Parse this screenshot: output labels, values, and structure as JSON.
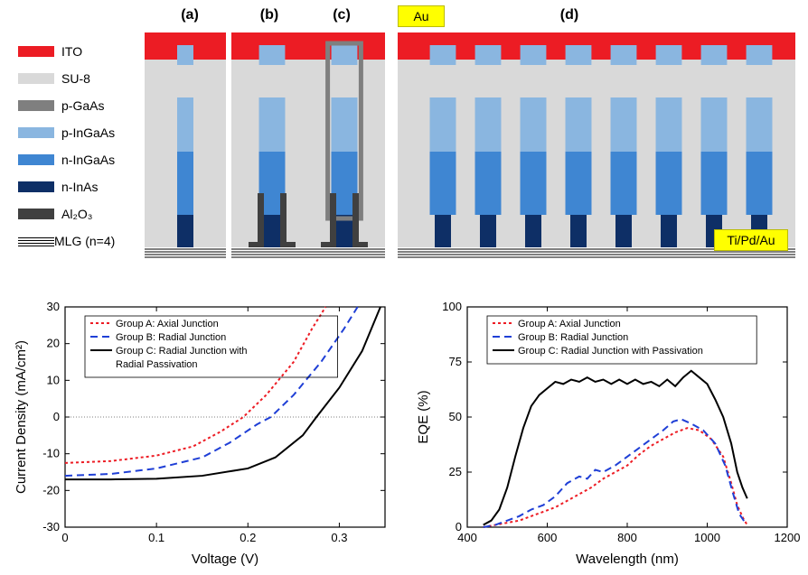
{
  "materials": [
    {
      "name": "ITO",
      "color": "#ec1c24"
    },
    {
      "name": "SU-8",
      "color": "#d9d9d9"
    },
    {
      "name": "p-GaAs",
      "color": "#7f7f7f"
    },
    {
      "name": "p-InGaAs",
      "color": "#8ab6e0"
    },
    {
      "name": "n-InGaAs",
      "color": "#3f86d2"
    },
    {
      "name": "n-InAs",
      "color": "#0e2f66"
    },
    {
      "name": "Al₂O₃",
      "color": "#404040"
    },
    {
      "name": "MLG (n=4)",
      "color": "hatch"
    }
  ],
  "gold_label_top": "Au",
  "gold_label_bottom": "Ti/Pd/Au",
  "sch_labels": [
    "(a)",
    "(b)",
    "(c)",
    "(d)"
  ],
  "iv_chart": {
    "xlabel": "Voltage (V)",
    "ylabel": "Current Density (mA/cm²)",
    "xlim": [
      0.0,
      0.35
    ],
    "xticks": [
      0.0,
      0.1,
      0.2,
      0.3
    ],
    "ylim": [
      -30,
      30
    ],
    "yticks": [
      -30,
      -20,
      -10,
      0,
      10,
      20,
      30
    ],
    "legend": [
      {
        "label": "Group A: Axial Junction",
        "color": "#ed1c24",
        "dash": "3,3"
      },
      {
        "label": "Group B: Radial Junction",
        "color": "#1f3fd6",
        "dash": "8,5"
      },
      {
        "label": "Group C: Radial Junction with\n                    Radial Passivation",
        "color": "#000000",
        "dash": ""
      }
    ],
    "series": {
      "A": [
        [
          0.0,
          -12.5
        ],
        [
          0.05,
          -12.0
        ],
        [
          0.1,
          -10.5
        ],
        [
          0.14,
          -8.0
        ],
        [
          0.17,
          -4.0
        ],
        [
          0.195,
          0.0
        ],
        [
          0.22,
          6.0
        ],
        [
          0.25,
          15.0
        ],
        [
          0.27,
          24.0
        ],
        [
          0.285,
          30.0
        ]
      ],
      "B": [
        [
          0.0,
          -16.0
        ],
        [
          0.05,
          -15.5
        ],
        [
          0.1,
          -14.0
        ],
        [
          0.15,
          -11.0
        ],
        [
          0.18,
          -7.0
        ],
        [
          0.21,
          -2.0
        ],
        [
          0.225,
          0.0
        ],
        [
          0.25,
          6.0
        ],
        [
          0.28,
          15.0
        ],
        [
          0.305,
          24.0
        ],
        [
          0.32,
          30.0
        ]
      ],
      "C": [
        [
          0.0,
          -17.0
        ],
        [
          0.05,
          -17.0
        ],
        [
          0.1,
          -16.8
        ],
        [
          0.15,
          -16.0
        ],
        [
          0.2,
          -14.0
        ],
        [
          0.23,
          -11.0
        ],
        [
          0.26,
          -5.0
        ],
        [
          0.275,
          0.0
        ],
        [
          0.3,
          8.0
        ],
        [
          0.325,
          18.0
        ],
        [
          0.345,
          30.0
        ]
      ]
    }
  },
  "eqe_chart": {
    "xlabel": "Wavelength (nm)",
    "ylabel": "EQE (%)",
    "xlim": [
      400,
      1200
    ],
    "xticks": [
      400,
      600,
      800,
      1000,
      1200
    ],
    "ylim": [
      0,
      100
    ],
    "yticks": [
      0,
      25,
      50,
      75,
      100
    ],
    "legend": [
      {
        "label": "Group A: Axial Junction",
        "color": "#ed1c24",
        "dash": "3,3"
      },
      {
        "label": "Group B: Radial Junction",
        "color": "#1f3fd6",
        "dash": "8,5"
      },
      {
        "label": "Group C: Radial Junction with Passivation",
        "color": "#000000",
        "dash": ""
      }
    ],
    "series": {
      "A": [
        [
          440,
          0
        ],
        [
          470,
          1
        ],
        [
          500,
          2
        ],
        [
          530,
          3
        ],
        [
          560,
          5
        ],
        [
          590,
          7
        ],
        [
          620,
          9
        ],
        [
          650,
          12
        ],
        [
          680,
          15
        ],
        [
          710,
          18
        ],
        [
          740,
          22
        ],
        [
          770,
          25
        ],
        [
          800,
          28
        ],
        [
          830,
          33
        ],
        [
          860,
          37
        ],
        [
          890,
          40
        ],
        [
          920,
          43
        ],
        [
          950,
          45
        ],
        [
          980,
          44
        ],
        [
          1010,
          40
        ],
        [
          1040,
          32
        ],
        [
          1060,
          20
        ],
        [
          1075,
          10
        ],
        [
          1090,
          4
        ],
        [
          1100,
          1
        ]
      ],
      "B": [
        [
          440,
          0
        ],
        [
          470,
          1
        ],
        [
          500,
          3
        ],
        [
          530,
          5
        ],
        [
          560,
          8
        ],
        [
          590,
          10
        ],
        [
          620,
          14
        ],
        [
          650,
          20
        ],
        [
          680,
          23
        ],
        [
          700,
          22
        ],
        [
          720,
          26
        ],
        [
          740,
          25
        ],
        [
          770,
          28
        ],
        [
          800,
          32
        ],
        [
          830,
          36
        ],
        [
          860,
          40
        ],
        [
          890,
          44
        ],
        [
          915,
          48
        ],
        [
          935,
          49
        ],
        [
          960,
          47
        ],
        [
          990,
          44
        ],
        [
          1020,
          38
        ],
        [
          1045,
          28
        ],
        [
          1065,
          15
        ],
        [
          1080,
          6
        ],
        [
          1095,
          2
        ]
      ],
      "C": [
        [
          440,
          1
        ],
        [
          460,
          3
        ],
        [
          480,
          8
        ],
        [
          500,
          18
        ],
        [
          520,
          32
        ],
        [
          540,
          45
        ],
        [
          560,
          55
        ],
        [
          580,
          60
        ],
        [
          600,
          63
        ],
        [
          620,
          66
        ],
        [
          640,
          65
        ],
        [
          660,
          67
        ],
        [
          680,
          66
        ],
        [
          700,
          68
        ],
        [
          720,
          66
        ],
        [
          740,
          67
        ],
        [
          760,
          65
        ],
        [
          780,
          67
        ],
        [
          800,
          65
        ],
        [
          820,
          67
        ],
        [
          840,
          65
        ],
        [
          860,
          66
        ],
        [
          880,
          64
        ],
        [
          900,
          67
        ],
        [
          920,
          64
        ],
        [
          940,
          68
        ],
        [
          960,
          71
        ],
        [
          980,
          68
        ],
        [
          1000,
          65
        ],
        [
          1020,
          58
        ],
        [
          1040,
          50
        ],
        [
          1060,
          38
        ],
        [
          1075,
          25
        ],
        [
          1088,
          18
        ],
        [
          1100,
          13
        ]
      ]
    }
  },
  "nanowire": {
    "layers": [
      {
        "name": "n-InAs",
        "h": 36,
        "color": "#0e2f66"
      },
      {
        "name": "n-InGaAs",
        "h": 70,
        "color": "#3f86d2"
      },
      {
        "name": "p-InGaAs",
        "h": 60,
        "color": "#8ab6e0"
      }
    ],
    "ito_h": 30,
    "su8_top": 42,
    "mlg_h": 12,
    "wire_w": 18
  }
}
